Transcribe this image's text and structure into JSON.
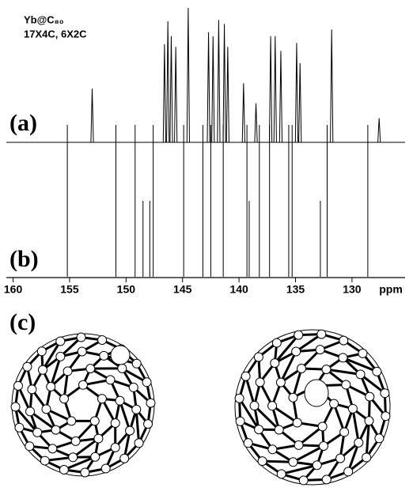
{
  "chart_data": [
    {
      "type": "spectrum",
      "label": "(a)",
      "annotations": [
        "Yb@C₈₀",
        "17X4C, 6X2C"
      ],
      "color": "#000000",
      "x": [
        153.0,
        146.6,
        146.3,
        146.0,
        145.6,
        144.5,
        142.7,
        142.3,
        141.8,
        141.3,
        141.0,
        139.6,
        138.5,
        137.2,
        136.8,
        136.3,
        134.9,
        134.6,
        131.8,
        127.6
      ],
      "values": [
        40,
        73,
        90,
        79,
        71,
        100,
        82,
        79,
        91,
        88,
        71,
        44,
        29,
        79,
        79,
        68,
        74,
        59,
        84,
        18
      ],
      "xlim": [
        160.6,
        125.3
      ],
      "ylim": [
        0,
        100
      ]
    },
    {
      "type": "stick",
      "label": "(b)",
      "color": "#000000",
      "x": [
        155.2,
        150.9,
        149.2,
        148.5,
        147.9,
        147.6,
        144.9,
        143.2,
        142.5,
        141.4,
        139.3,
        139.1,
        138.2,
        137.3,
        135.6,
        135.3,
        132.8,
        132.2,
        128.6
      ],
      "values": [
        2,
        2,
        2,
        1,
        1,
        2,
        2,
        2,
        2,
        2,
        2,
        1,
        2,
        2,
        2,
        2,
        1,
        2,
        2
      ],
      "xlim": [
        160.6,
        125.3
      ],
      "ylim": [
        0,
        2
      ],
      "xticks": [
        160,
        155,
        150,
        145,
        140,
        135,
        130
      ],
      "xlabel": "ppm"
    },
    {
      "type": "structure",
      "label": "(c)"
    }
  ]
}
